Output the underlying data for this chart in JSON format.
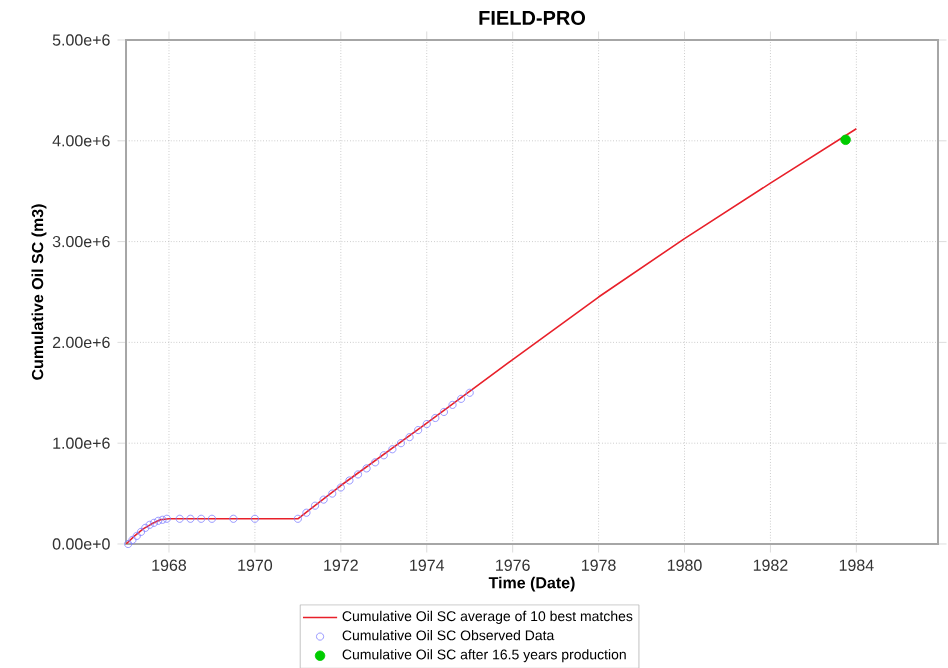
{
  "chart_data": {
    "type": "line",
    "title": "FIELD-PRO",
    "xlabel": "Time (Date)",
    "ylabel": "Cumulative Oil SC (m3)",
    "xlim": [
      1967,
      1985.9
    ],
    "ylim": [
      0,
      5000000
    ],
    "xticks": [
      1968,
      1970,
      1972,
      1974,
      1976,
      1978,
      1980,
      1982,
      1984
    ],
    "yticks": [
      {
        "value": 0,
        "label": "0.00e+0"
      },
      {
        "value": 1000000,
        "label": "1.00e+6"
      },
      {
        "value": 2000000,
        "label": "2.00e+6"
      },
      {
        "value": 3000000,
        "label": "3.00e+6"
      },
      {
        "value": 4000000,
        "label": "4.00e+6"
      },
      {
        "value": 5000000,
        "label": "5.00e+6"
      }
    ],
    "grid": true,
    "legend": "bottom",
    "series": [
      {
        "name": "Cumulative Oil SC  average of 10 best matches",
        "color": "#e8202a",
        "marker": "none",
        "line_style": "solid",
        "x": [
          1967,
          1967.2,
          1967.4,
          1967.6,
          1967.8,
          1968,
          1971,
          1972,
          1974,
          1976,
          1978,
          1980,
          1982,
          1984
        ],
        "values": [
          0,
          80000,
          150000,
          200000,
          240000,
          250000,
          250000,
          580000,
          1200000,
          1830000,
          2450000,
          3030000,
          3580000,
          4120000
        ]
      },
      {
        "name": "Cumulative Oil SC Observed Data",
        "type": "scatter",
        "color": "#8080ff",
        "marker": "circle",
        "x": [
          1967.05,
          1967.15,
          1967.25,
          1967.35,
          1967.45,
          1967.55,
          1967.65,
          1967.75,
          1967.85,
          1967.95,
          1968.25,
          1968.5,
          1968.75,
          1969.0,
          1969.5,
          1970.0,
          1971.0,
          1971.2,
          1971.4,
          1971.6,
          1971.8,
          1972.0,
          1972.2,
          1972.4,
          1972.6,
          1972.8,
          1973.0,
          1973.2,
          1973.4,
          1973.6,
          1973.8,
          1974.0,
          1974.2,
          1974.4,
          1974.6,
          1974.8,
          1975.0
        ],
        "values": [
          0,
          40000,
          80000,
          120000,
          160000,
          190000,
          210000,
          230000,
          240000,
          250000,
          250000,
          250000,
          250000,
          250000,
          250000,
          250000,
          250000,
          310000,
          380000,
          440000,
          500000,
          560000,
          630000,
          690000,
          750000,
          810000,
          880000,
          940000,
          1000000,
          1060000,
          1130000,
          1190000,
          1250000,
          1310000,
          1380000,
          1440000,
          1500000
        ]
      },
      {
        "name": "Cumulative Oil SC after 16.5 years production",
        "type": "scatter",
        "color": "#00cc00",
        "marker": "filled circle",
        "x": [
          1983.75
        ],
        "values": [
          4010000
        ]
      }
    ]
  }
}
